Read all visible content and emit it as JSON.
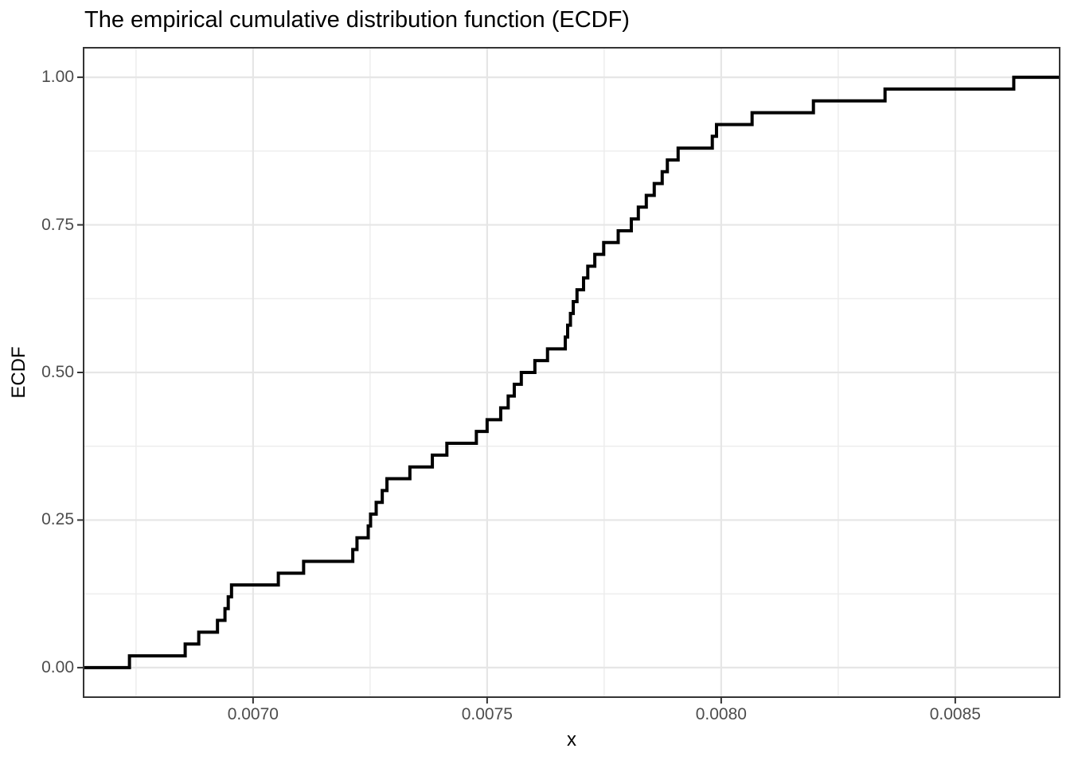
{
  "chart_data": {
    "type": "line",
    "subtype": "ecdf-step",
    "title": "The empirical cumulative distribution function (ECDF)",
    "xlabel": "x",
    "ylabel": "ECDF",
    "legend": "none",
    "grid": true,
    "n_points": 50,
    "step_height": 0.02,
    "xlim": [
      0.006638,
      0.008723
    ],
    "ylim": [
      -0.05,
      1.05
    ],
    "x_ticks": {
      "values": [
        0.007,
        0.0075,
        0.008,
        0.0085
      ],
      "labels": [
        "0.0070",
        "0.0075",
        "0.0080",
        "0.0085"
      ]
    },
    "x_minor": [
      0.00675,
      0.00725,
      0.00775,
      0.00825
    ],
    "y_ticks": {
      "values": [
        0.0,
        0.25,
        0.5,
        0.75,
        1.0
      ],
      "labels": [
        "0.00",
        "0.25",
        "0.50",
        "0.75",
        "1.00"
      ]
    },
    "y_minor": [
      0.125,
      0.375,
      0.625,
      0.875
    ],
    "x": [
      0.006736,
      0.006855,
      0.006884,
      0.006924,
      0.00694,
      0.006947,
      0.006954,
      0.007054,
      0.007108,
      0.007213,
      0.007222,
      0.007246,
      0.007251,
      0.007263,
      0.007276,
      0.007286,
      0.007335,
      0.007383,
      0.007414,
      0.007477,
      0.0075,
      0.007529,
      0.007545,
      0.007558,
      0.007573,
      0.007602,
      0.007629,
      0.007667,
      0.007672,
      0.007678,
      0.007684,
      0.007692,
      0.007706,
      0.007715,
      0.00773,
      0.007749,
      0.00778,
      0.007808,
      0.007823,
      0.00784,
      0.007857,
      0.007874,
      0.007885,
      0.007908,
      0.007981,
      0.00799,
      0.008066,
      0.008197,
      0.00835,
      0.008625
    ],
    "y": [
      0.02,
      0.04,
      0.06,
      0.08,
      0.1,
      0.12,
      0.14,
      0.16,
      0.18,
      0.2,
      0.22,
      0.24,
      0.26,
      0.28,
      0.3,
      0.32,
      0.34,
      0.36,
      0.38,
      0.4,
      0.42,
      0.44,
      0.46,
      0.48,
      0.5,
      0.52,
      0.54,
      0.56,
      0.58,
      0.6,
      0.62,
      0.64,
      0.66,
      0.68,
      0.7,
      0.72,
      0.74,
      0.76,
      0.78,
      0.8,
      0.82,
      0.84,
      0.86,
      0.88,
      0.9,
      0.92,
      0.94,
      0.96,
      0.98,
      1.0
    ],
    "colors": {
      "line": "#000000",
      "grid_major": "#e6e6e6",
      "grid_minor": "#ececec",
      "panel_border": "#343434",
      "tick_mark": "#333333",
      "tick_label": "#4d4d4d",
      "text": "#000000",
      "background": "#ffffff"
    }
  }
}
